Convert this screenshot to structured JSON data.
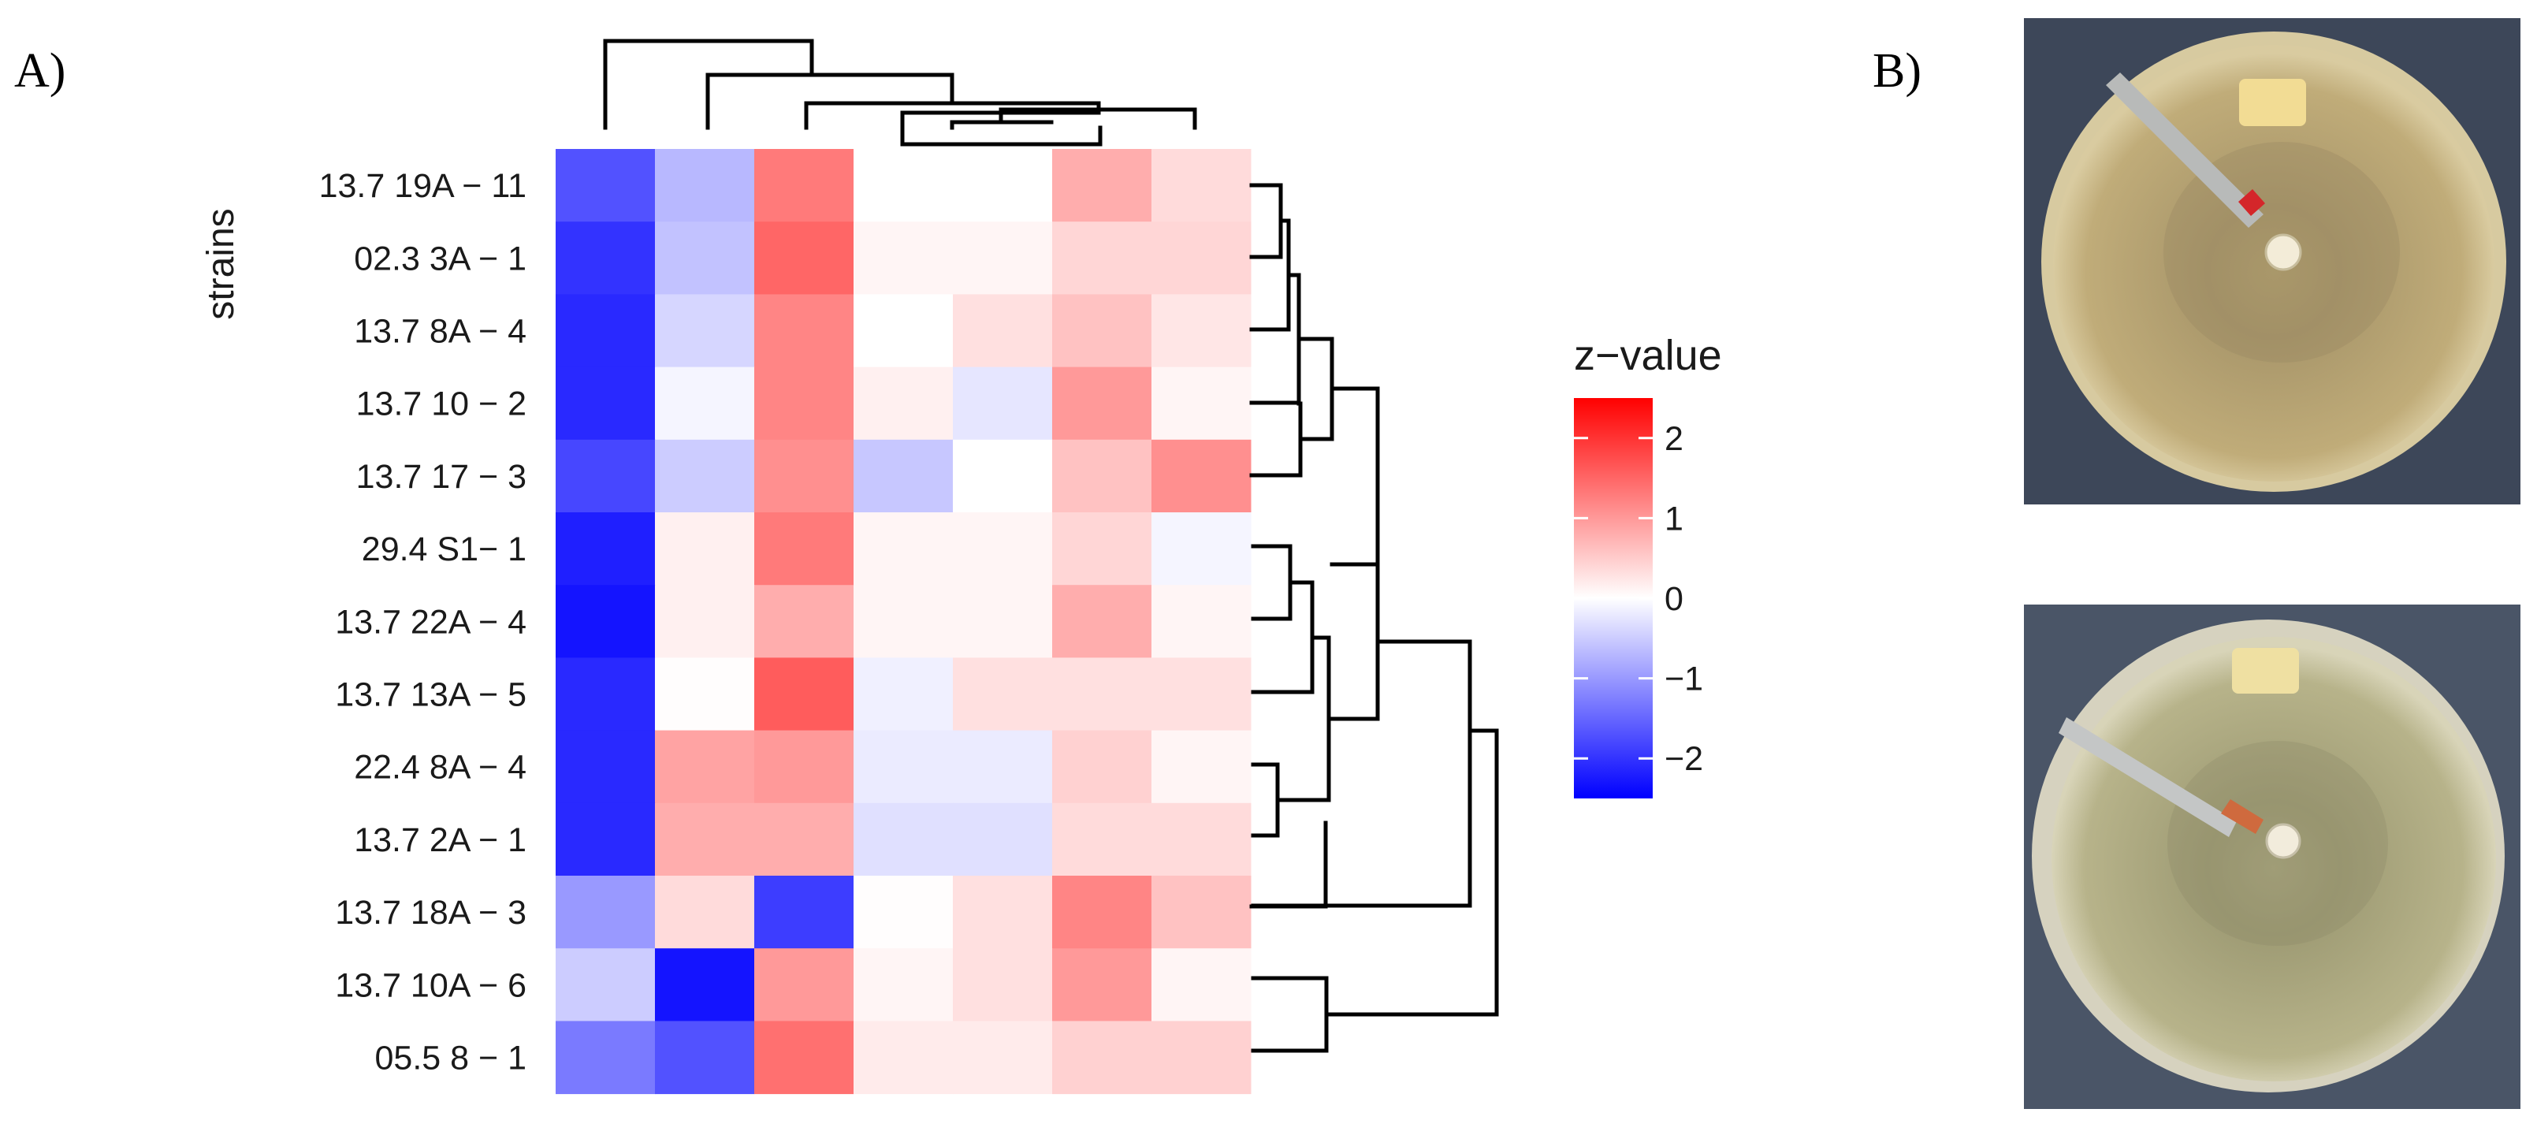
{
  "panels": {
    "a_label": "A)",
    "b_label": "B)"
  },
  "chart_data": {
    "type": "heatmap",
    "ylabel": "strains",
    "legend": {
      "title": "z−value",
      "ticks": [
        "2",
        "1",
        "0",
        "−1",
        "−2"
      ],
      "tick_values": [
        2,
        1,
        0,
        -1,
        -2
      ],
      "range": [
        -2.5,
        2.5
      ],
      "colors": {
        "low": "#0000FF",
        "mid": "#FFFFFF",
        "high": "#FF0000"
      },
      "placement": "right"
    },
    "rows": [
      "13.7 19A − 11",
      "02.3 3A − 1",
      "13.7 8A − 4",
      "13.7 10 − 2",
      "13.7 17 − 3",
      "29.4 S1− 1",
      "13.7 22A − 4",
      "13.7 13A − 5",
      "22.4 8A − 4",
      "13.7 2A − 1",
      "13.7 18A − 3",
      "13.7 10A − 6",
      "05.5 8 − 1"
    ],
    "columns": 7,
    "values": [
      [
        -1.7,
        -0.7,
        1.3,
        0.0,
        0.0,
        0.8,
        0.35
      ],
      [
        -2.0,
        -0.6,
        1.5,
        0.1,
        0.1,
        0.4,
        0.4
      ],
      [
        -2.1,
        -0.4,
        1.2,
        0.0,
        0.3,
        0.6,
        0.25
      ],
      [
        -2.1,
        -0.1,
        1.2,
        0.15,
        -0.25,
        1.0,
        0.1
      ],
      [
        -1.8,
        -0.5,
        1.1,
        -0.55,
        0.0,
        0.6,
        1.1
      ],
      [
        -2.2,
        0.15,
        1.3,
        0.1,
        0.1,
        0.4,
        -0.1
      ],
      [
        -2.3,
        0.15,
        0.8,
        0.1,
        0.1,
        0.8,
        0.1
      ],
      [
        -2.1,
        0.02,
        1.6,
        -0.15,
        0.3,
        0.3,
        0.3
      ],
      [
        -2.1,
        0.9,
        1.0,
        -0.2,
        -0.2,
        0.45,
        0.1
      ],
      [
        -2.1,
        0.8,
        0.8,
        -0.3,
        -0.3,
        0.35,
        0.35
      ],
      [
        -1.0,
        0.35,
        -1.9,
        0.02,
        0.3,
        1.2,
        0.6
      ],
      [
        -0.5,
        -2.3,
        1.0,
        0.1,
        0.3,
        1.0,
        0.1
      ],
      [
        -1.3,
        -1.7,
        1.4,
        0.2,
        0.2,
        0.45,
        0.45
      ]
    ],
    "grid": false
  },
  "photos": [
    {
      "name": "plate-top",
      "background": "#3f4a5f",
      "agar": "#b9a776",
      "rim": "#d8cfb0"
    },
    {
      "name": "plate-bottom",
      "background": "#4a5567",
      "agar": "#b4b089",
      "rim": "#d6d3c0"
    }
  ]
}
